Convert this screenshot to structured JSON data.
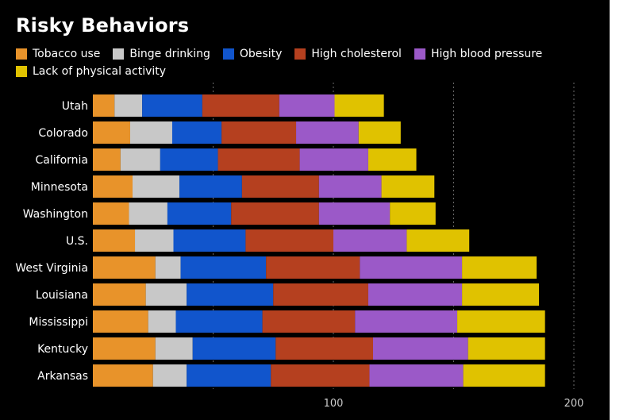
{
  "chart_data": {
    "type": "bar",
    "orientation": "horizontal",
    "stacked": true,
    "title": "Risky Behaviors",
    "xlabel": "",
    "ylabel": "",
    "xlim": [
      0,
      200
    ],
    "xticks": [
      0,
      50,
      100,
      150,
      200
    ],
    "xtick_labels": [
      "",
      "",
      "100",
      "",
      "200"
    ],
    "grid": "dotted-vertical",
    "legend_position": "top",
    "categories": [
      "Utah",
      "Colorado",
      "California",
      "Minnesota",
      "Washington",
      "U.S.",
      "West Virginia",
      "Louisiana",
      "Mississippi",
      "Kentucky",
      "Arkansas"
    ],
    "series": [
      {
        "name": "Tobacco use",
        "color": "#e8932a",
        "values": [
          9,
          15.5,
          11.5,
          16.5,
          15,
          17.5,
          26,
          22,
          23,
          26,
          25
        ]
      },
      {
        "name": "Binge drinking",
        "color": "#c8c8c8",
        "values": [
          11.5,
          17.5,
          16.5,
          19.5,
          16,
          16,
          10.5,
          17,
          11.5,
          15.5,
          14
        ]
      },
      {
        "name": "Obesity",
        "color": "#1155cc",
        "values": [
          25,
          20.5,
          24,
          26,
          26.5,
          30,
          35.5,
          36,
          36,
          34.5,
          35
        ]
      },
      {
        "name": "High cholesterol",
        "color": "#b5401f",
        "values": [
          32,
          31,
          34,
          32,
          36.5,
          36.5,
          39,
          39.5,
          38.5,
          40.5,
          41
        ]
      },
      {
        "name": "High blood pressure",
        "color": "#9b59c8",
        "values": [
          23,
          26,
          28.5,
          26,
          29.5,
          30.5,
          42.5,
          39,
          42.5,
          39.5,
          39
        ]
      },
      {
        "name": "Lack of physical activity",
        "color": "#e0c200",
        "values": [
          20.5,
          17.5,
          20,
          22,
          19,
          26,
          31,
          32,
          36.5,
          32,
          34
        ]
      }
    ]
  }
}
